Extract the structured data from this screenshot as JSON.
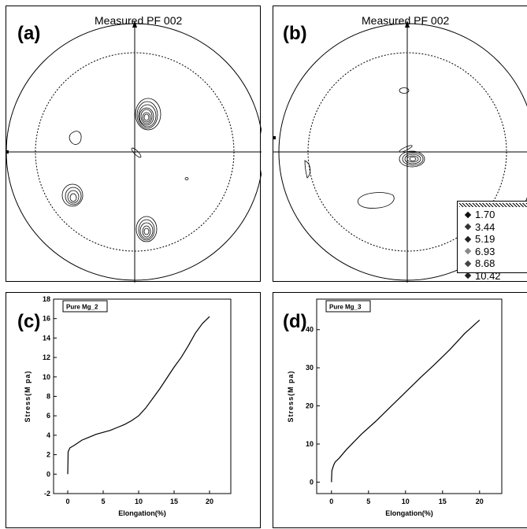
{
  "panels": {
    "a": {
      "letter": "(a)",
      "title": "Measured PF 002"
    },
    "b": {
      "letter": "(b)",
      "title": "Measured PF 002"
    },
    "c": {
      "letter": "(c)"
    },
    "d": {
      "letter": "(d)"
    }
  },
  "legend": {
    "items": [
      {
        "label": "1.70",
        "color": "#111111"
      },
      {
        "label": "3.44",
        "color": "#333333"
      },
      {
        "label": "5.19",
        "color": "#222222"
      },
      {
        "label": "6.93",
        "color": "#888888"
      },
      {
        "label": "8.68",
        "color": "#444444"
      },
      {
        "label": "10.42",
        "color": "#222222"
      }
    ]
  },
  "chart_data": [
    {
      "type": "line",
      "legend_label": "Pure Mg_2",
      "xlabel": "Elongation(%)",
      "ylabel": "Stress(M pa)",
      "xlim": [
        -2,
        23
      ],
      "ylim": [
        -2,
        18
      ],
      "xticks": [
        0,
        5,
        10,
        15,
        20
      ],
      "yticks": [
        -2,
        0,
        2,
        4,
        6,
        8,
        10,
        12,
        14,
        16,
        18
      ],
      "series": [
        {
          "x": [
            0,
            0.05,
            0.3,
            1,
            2,
            3,
            4,
            5,
            6,
            7,
            8,
            9,
            10,
            11,
            12,
            13,
            14,
            15,
            16,
            17,
            18,
            19,
            20
          ],
          "y": [
            0,
            2.3,
            2.7,
            3.0,
            3.5,
            3.8,
            4.1,
            4.3,
            4.5,
            4.8,
            5.1,
            5.5,
            6.0,
            6.8,
            7.8,
            8.8,
            9.9,
            11.0,
            12.0,
            13.2,
            14.5,
            15.5,
            16.2
          ]
        }
      ]
    },
    {
      "type": "line",
      "legend_label": "Pure Mg_3",
      "xlabel": "Elongation(%)",
      "ylabel": "Stress(M pa)",
      "xlim": [
        -2,
        23
      ],
      "ylim": [
        -3,
        48
      ],
      "xticks": [
        0,
        5,
        10,
        15,
        20
      ],
      "yticks": [
        0,
        10,
        20,
        30,
        40
      ],
      "series": [
        {
          "x": [
            0,
            0.05,
            0.3,
            0.5,
            1,
            2,
            4,
            6,
            8,
            10,
            12,
            14,
            16,
            18,
            20
          ],
          "y": [
            0,
            3,
            4.5,
            5.3,
            6.2,
            8.5,
            12.5,
            16.0,
            19.8,
            23.6,
            27.4,
            31.0,
            34.8,
            39.0,
            42.5
          ]
        }
      ]
    }
  ]
}
